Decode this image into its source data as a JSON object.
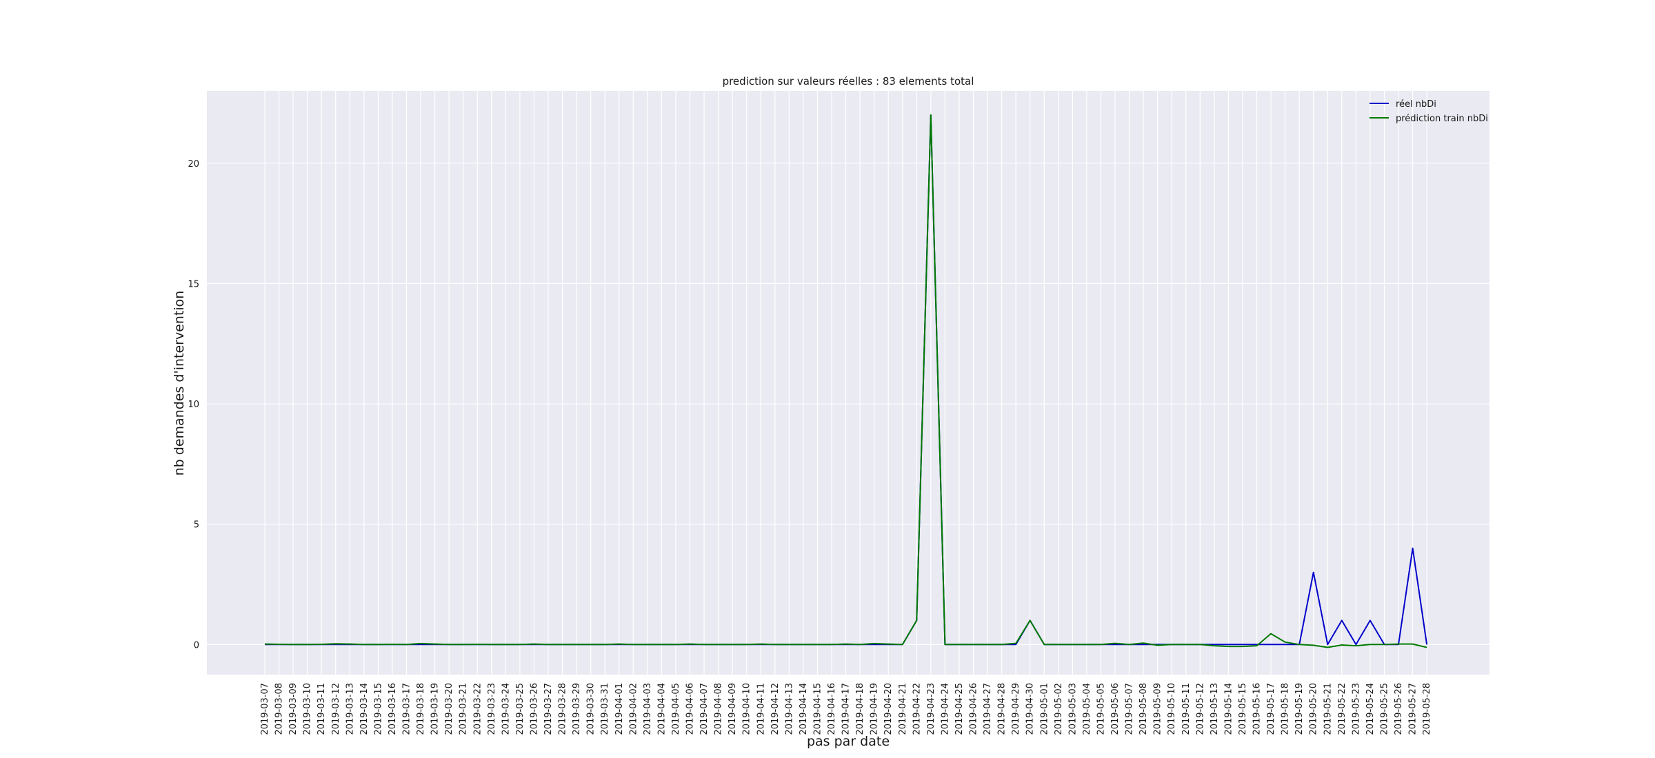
{
  "chart_data": {
    "type": "line",
    "title": "prediction sur valeurs réelles : 83 elements total",
    "xlabel": "pas par date",
    "ylabel": "nb demandes d'intervention",
    "ylim": [
      -1.25,
      23.0
    ],
    "yticks": [
      0,
      5,
      10,
      15,
      20
    ],
    "grid": true,
    "legend_position": "top-right",
    "x": [
      "2019-03-07",
      "2019-03-08",
      "2019-03-09",
      "2019-03-10",
      "2019-03-11",
      "2019-03-12",
      "2019-03-13",
      "2019-03-14",
      "2019-03-15",
      "2019-03-16",
      "2019-03-17",
      "2019-03-18",
      "2019-03-19",
      "2019-03-20",
      "2019-03-21",
      "2019-03-22",
      "2019-03-23",
      "2019-03-24",
      "2019-03-25",
      "2019-03-26",
      "2019-03-27",
      "2019-03-28",
      "2019-03-29",
      "2019-03-30",
      "2019-03-31",
      "2019-04-01",
      "2019-04-02",
      "2019-04-03",
      "2019-04-04",
      "2019-04-05",
      "2019-04-06",
      "2019-04-07",
      "2019-04-08",
      "2019-04-09",
      "2019-04-10",
      "2019-04-11",
      "2019-04-12",
      "2019-04-13",
      "2019-04-14",
      "2019-04-15",
      "2019-04-16",
      "2019-04-17",
      "2019-04-18",
      "2019-04-19",
      "2019-04-20",
      "2019-04-21",
      "2019-04-22",
      "2019-04-23",
      "2019-04-24",
      "2019-04-25",
      "2019-04-26",
      "2019-04-27",
      "2019-04-28",
      "2019-04-29",
      "2019-04-30",
      "2019-05-01",
      "2019-05-02",
      "2019-05-03",
      "2019-05-04",
      "2019-05-05",
      "2019-05-06",
      "2019-05-07",
      "2019-05-08",
      "2019-05-09",
      "2019-05-10",
      "2019-05-11",
      "2019-05-12",
      "2019-05-13",
      "2019-05-14",
      "2019-05-15",
      "2019-05-16",
      "2019-05-17",
      "2019-05-18",
      "2019-05-19",
      "2019-05-20",
      "2019-05-21",
      "2019-05-22",
      "2019-05-23",
      "2019-05-24",
      "2019-05-25",
      "2019-05-26",
      "2019-05-27",
      "2019-05-28"
    ],
    "series": [
      {
        "name": "réel nbDi",
        "color": "#0000cc",
        "values": [
          0,
          0,
          0,
          0,
          0,
          0,
          0,
          0,
          0,
          0,
          0,
          0,
          0,
          0,
          0,
          0,
          0,
          0,
          0,
          0,
          0,
          0,
          0,
          0,
          0,
          0,
          0,
          0,
          0,
          0,
          0,
          0,
          0,
          0,
          0,
          0,
          0,
          0,
          0,
          0,
          0,
          0,
          0,
          0,
          0,
          0,
          1,
          22,
          0,
          0,
          0,
          0,
          0,
          0,
          1,
          0,
          0,
          0,
          0,
          0,
          0,
          0,
          0,
          0,
          0,
          0,
          0,
          0,
          0,
          0,
          0,
          0,
          0,
          0,
          3,
          0,
          1,
          0,
          1,
          0,
          0,
          4,
          0
        ]
      },
      {
        "name": "prédiction train nbDi",
        "color": "#007a00",
        "values": [
          0.02,
          0.01,
          0.0,
          0.0,
          0.01,
          0.03,
          0.02,
          0.0,
          0.0,
          0.01,
          0.0,
          0.04,
          0.02,
          0.0,
          0.0,
          0.01,
          0.0,
          0.0,
          0.0,
          0.02,
          0.0,
          0.0,
          0.0,
          0.0,
          0.0,
          0.02,
          0.0,
          0.0,
          0.0,
          0.0,
          0.02,
          0.0,
          0.0,
          0.0,
          0.0,
          0.02,
          0.0,
          0.0,
          0.0,
          0.0,
          0.0,
          0.02,
          0.0,
          0.04,
          0.02,
          0.0,
          1.0,
          22.0,
          0.0,
          0.0,
          0.0,
          0.0,
          0.0,
          0.05,
          1.0,
          0.0,
          0.0,
          0.0,
          0.0,
          0.0,
          0.05,
          0.0,
          0.06,
          -0.03,
          0.0,
          0.0,
          0.0,
          -0.05,
          -0.08,
          -0.08,
          -0.05,
          0.45,
          0.1,
          0.0,
          -0.03,
          -0.12,
          -0.02,
          -0.05,
          0.0,
          0.0,
          0.02,
          0.02,
          -0.12
        ]
      }
    ]
  }
}
